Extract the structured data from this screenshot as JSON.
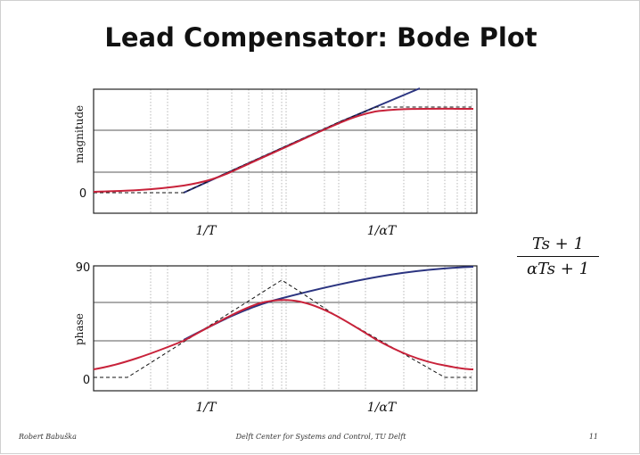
{
  "slide": {
    "title": "Lead Compensator: Bode Plot",
    "transfer_function": {
      "numerator": "Ts + 1",
      "denominator": "αTs + 1"
    },
    "footer": {
      "author": "Robert Babuška",
      "center": "Delft Center for Systems and Control, TU Delft",
      "page": "11"
    }
  },
  "colors": {
    "exact": "#c8223a",
    "asymptote_ideal": "#2b3480",
    "asymptote_approx": "#111111",
    "gridline": "#888888"
  },
  "chart_data": [
    {
      "type": "line",
      "name": "magnitude-plot",
      "ylabel": "magnitude",
      "x_tick_labels": [
        "1/T",
        "1/αT"
      ],
      "y_tick_labels": [
        "0"
      ],
      "x_scale": "log",
      "grid": true
    },
    {
      "type": "line",
      "name": "phase-plot",
      "ylabel": "phase",
      "x_tick_labels": [
        "1/T",
        "1/αT"
      ],
      "y_tick_labels": [
        "0",
        "90"
      ],
      "x_scale": "log",
      "grid": true
    }
  ]
}
